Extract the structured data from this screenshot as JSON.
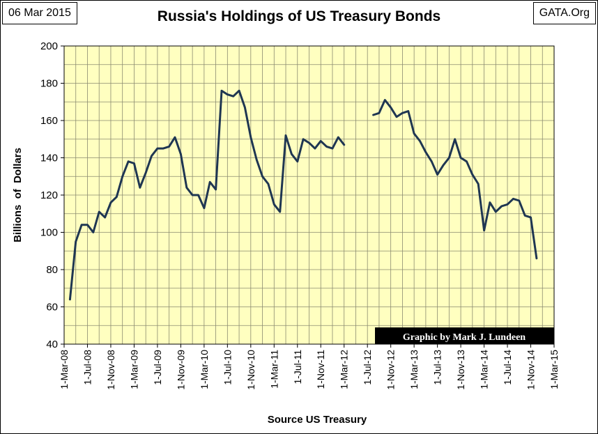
{
  "header": {
    "date": "06 Mar 2015",
    "source_site": "GATA.Org"
  },
  "chart_data": {
    "type": "line",
    "title": "Russia's Holdings of US Treasury Bonds",
    "xlabel": "Source US Treasury",
    "ylabel": "Billions  of  Dollars",
    "credit": "Graphic by Mark J. Lundeen",
    "ylim": [
      40,
      200
    ],
    "yticks": [
      40,
      60,
      80,
      100,
      120,
      140,
      160,
      180,
      200
    ],
    "xlim": [
      "2008-03-01",
      "2015-03-01"
    ],
    "xtick_labels": [
      "1-Mar-08",
      "1-Jul-08",
      "1-Nov-08",
      "1-Mar-09",
      "1-Jul-09",
      "1-Nov-09",
      "1-Mar-10",
      "1-Jul-10",
      "1-Nov-10",
      "1-Mar-11",
      "1-Jul-11",
      "1-Nov-11",
      "1-Mar-12",
      "1-Jul-12",
      "1-Nov-12",
      "1-Mar-13",
      "1-Jul-13",
      "1-Nov-13",
      "1-Mar-14",
      "1-Jul-14",
      "1-Nov-14",
      "1-Mar-15"
    ],
    "grid": true,
    "background_color": "#ffffc0",
    "line_color": "#1f3652",
    "segments": [
      {
        "points": [
          [
            "2008-04",
            64
          ],
          [
            "2008-05",
            95
          ],
          [
            "2008-06",
            104
          ],
          [
            "2008-07",
            104
          ],
          [
            "2008-08",
            100
          ],
          [
            "2008-09",
            111
          ],
          [
            "2008-10",
            108
          ],
          [
            "2008-11",
            116
          ],
          [
            "2008-12",
            119
          ],
          [
            "2009-01",
            130
          ],
          [
            "2009-02",
            138
          ],
          [
            "2009-03",
            137
          ],
          [
            "2009-04",
            124
          ],
          [
            "2009-05",
            132
          ],
          [
            "2009-06",
            141
          ],
          [
            "2009-07",
            145
          ],
          [
            "2009-08",
            145
          ],
          [
            "2009-09",
            146
          ],
          [
            "2009-10",
            151
          ],
          [
            "2009-11",
            142
          ],
          [
            "2009-12",
            124
          ],
          [
            "2010-01",
            120
          ],
          [
            "2010-02",
            120
          ],
          [
            "2010-03",
            113
          ],
          [
            "2010-04",
            127
          ],
          [
            "2010-05",
            123
          ],
          [
            "2010-06",
            176
          ],
          [
            "2010-07",
            174
          ],
          [
            "2010-08",
            173
          ],
          [
            "2010-09",
            176
          ],
          [
            "2010-10",
            167
          ],
          [
            "2010-11",
            151
          ],
          [
            "2010-12",
            139
          ],
          [
            "2011-01",
            130
          ],
          [
            "2011-02",
            126
          ],
          [
            "2011-03",
            115
          ],
          [
            "2011-04",
            111
          ],
          [
            "2011-05",
            152
          ],
          [
            "2011-06",
            142
          ],
          [
            "2011-07",
            138
          ],
          [
            "2011-08",
            150
          ],
          [
            "2011-09",
            148
          ],
          [
            "2011-10",
            145
          ],
          [
            "2011-11",
            149
          ],
          [
            "2011-12",
            146
          ],
          [
            "2012-01",
            145
          ],
          [
            "2012-02",
            151
          ],
          [
            "2012-03",
            147
          ]
        ]
      },
      {
        "points": [
          [
            "2012-08",
            163
          ],
          [
            "2012-09",
            164
          ],
          [
            "2012-10",
            171
          ],
          [
            "2012-11",
            167
          ],
          [
            "2012-12",
            162
          ],
          [
            "2013-01",
            164
          ],
          [
            "2013-02",
            165
          ],
          [
            "2013-03",
            153
          ],
          [
            "2013-04",
            149
          ],
          [
            "2013-05",
            143
          ],
          [
            "2013-06",
            138
          ],
          [
            "2013-07",
            131
          ],
          [
            "2013-08",
            136
          ],
          [
            "2013-09",
            140
          ],
          [
            "2013-10",
            150
          ],
          [
            "2013-11",
            140
          ],
          [
            "2013-12",
            138
          ],
          [
            "2014-01",
            131
          ],
          [
            "2014-02",
            126
          ],
          [
            "2014-03",
            101
          ],
          [
            "2014-04",
            116
          ],
          [
            "2014-05",
            111
          ],
          [
            "2014-06",
            114
          ],
          [
            "2014-07",
            115
          ],
          [
            "2014-08",
            118
          ],
          [
            "2014-09",
            117
          ],
          [
            "2014-10",
            109
          ],
          [
            "2014-11",
            108
          ],
          [
            "2014-12",
            86
          ]
        ]
      }
    ]
  }
}
